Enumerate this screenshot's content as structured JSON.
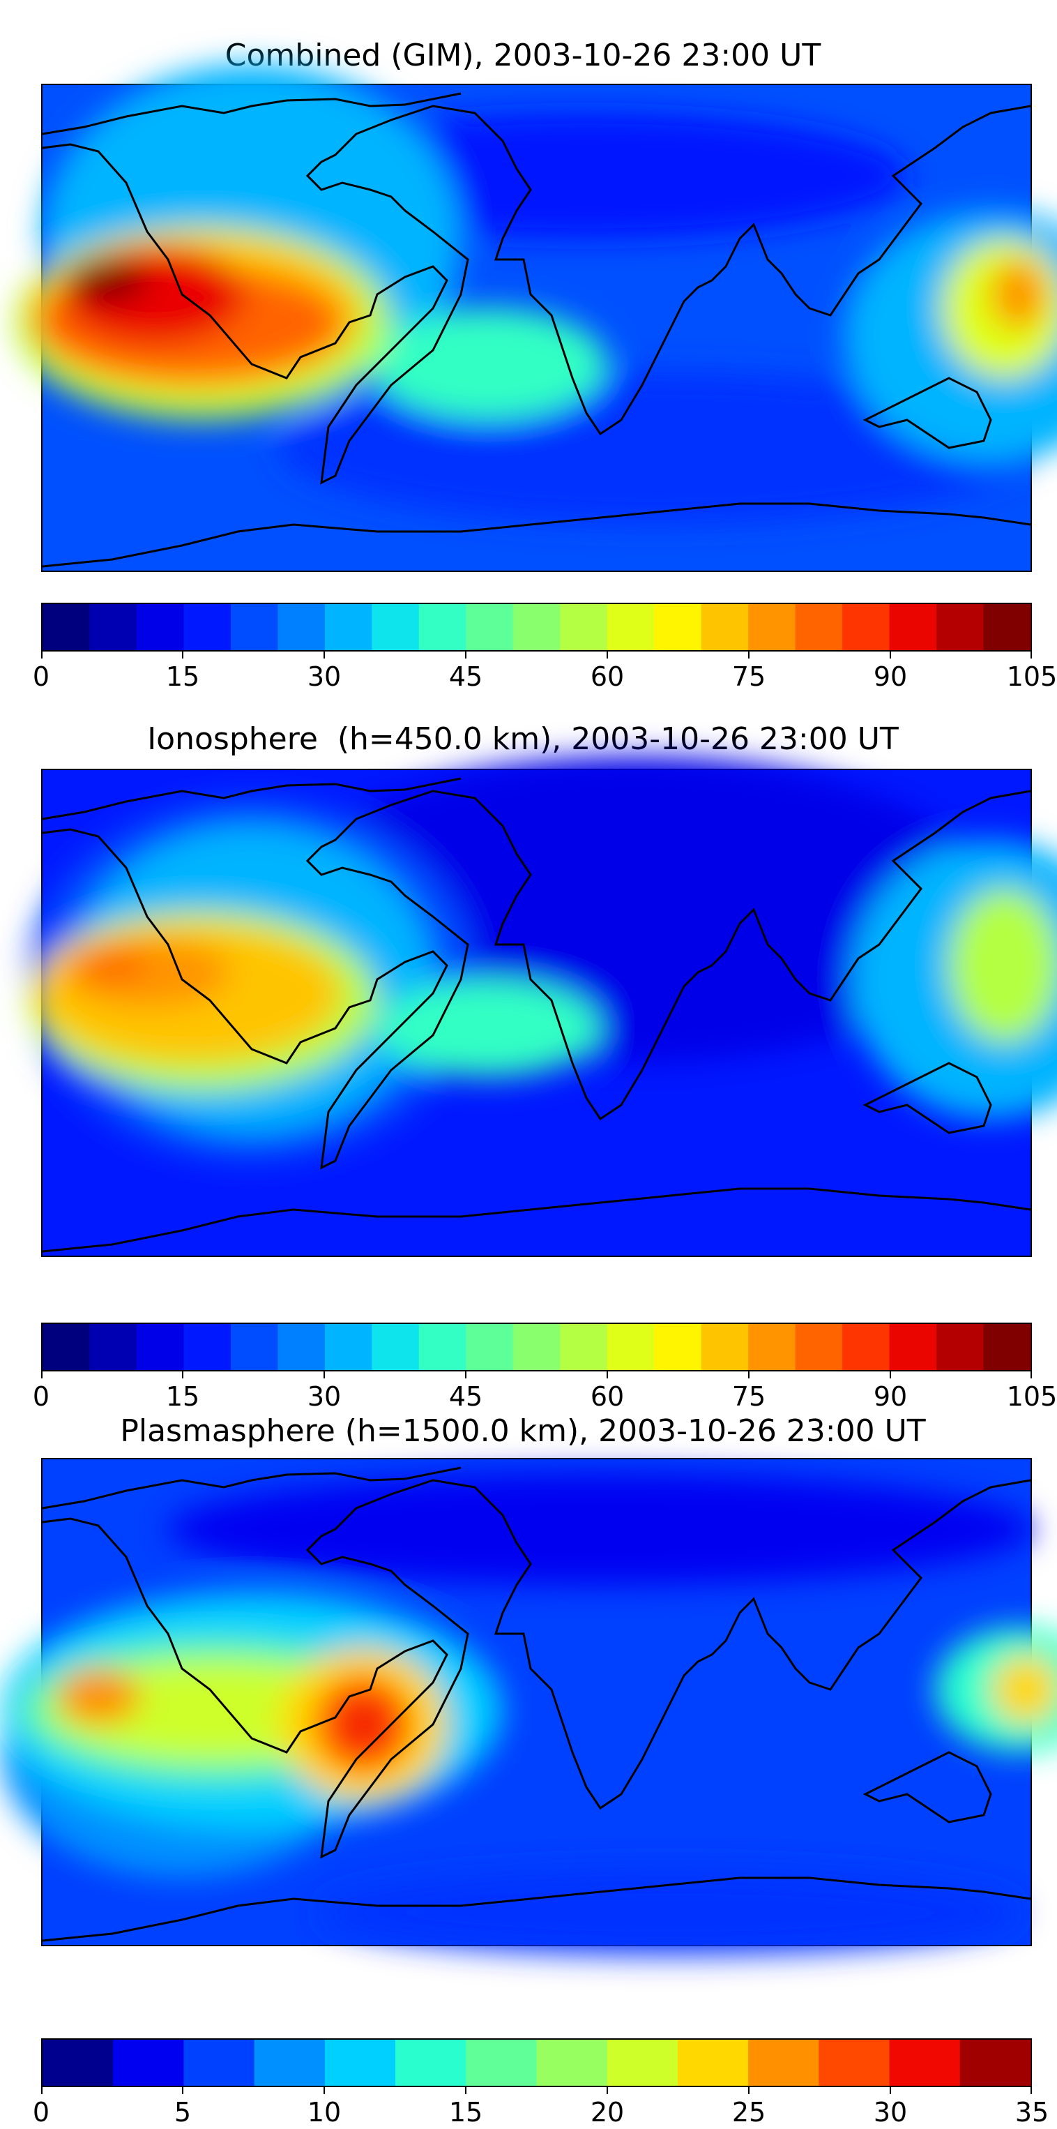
{
  "panels": [
    {
      "title": "Combined (GIM), 2003-10-26 23:00 UT",
      "colorbar": {
        "min": 0,
        "max": 105,
        "colors": [
          "#00007f",
          "#0000b2",
          "#0000e8",
          "#0018ff",
          "#004cff",
          "#0080ff",
          "#00b4ff",
          "#0de4eb",
          "#33ffc4",
          "#5eff99",
          "#89ff6e",
          "#b4ff43",
          "#dfff18",
          "#fff500",
          "#ffc400",
          "#ff9400",
          "#ff6400",
          "#ff3500",
          "#ea0500",
          "#b40000",
          "#800000"
        ],
        "ticks": [
          "0",
          "15",
          "30",
          "45",
          "60",
          "75",
          "90",
          "105"
        ]
      }
    },
    {
      "title": "Ionosphere  (h=450.0 km), 2003-10-26 23:00 UT",
      "colorbar": {
        "min": 0,
        "max": 105,
        "colors": [
          "#00007f",
          "#0000b2",
          "#0000e8",
          "#0018ff",
          "#004cff",
          "#0080ff",
          "#00b4ff",
          "#0de4eb",
          "#33ffc4",
          "#5eff99",
          "#89ff6e",
          "#b4ff43",
          "#dfff18",
          "#fff500",
          "#ffc400",
          "#ff9400",
          "#ff6400",
          "#ff3500",
          "#ea0500",
          "#b40000",
          "#800000"
        ],
        "ticks": [
          "0",
          "15",
          "30",
          "45",
          "60",
          "75",
          "90",
          "105"
        ]
      }
    },
    {
      "title": "Plasmasphere (h=1500.0 km), 2003-10-26 23:00 UT",
      "colorbar": {
        "min": 0,
        "max": 35,
        "colors": [
          "#00008f",
          "#0000f1",
          "#0040ff",
          "#0090ff",
          "#00d0ff",
          "#29ffce",
          "#60ff97",
          "#97ff60",
          "#ceff29",
          "#ffd800",
          "#ff9000",
          "#ff4800",
          "#f10800",
          "#a00000"
        ],
        "ticks": [
          "0",
          "5",
          "10",
          "15",
          "20",
          "25",
          "30",
          "35"
        ]
      }
    }
  ]
}
